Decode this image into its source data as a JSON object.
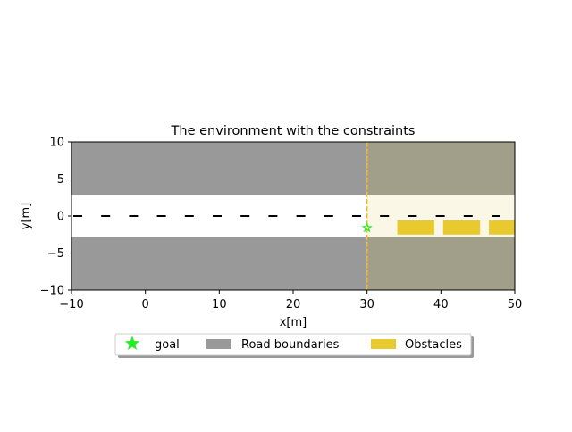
{
  "chart_data": {
    "type": "environment-map",
    "title": "The environment with the constraints",
    "xlabel": "x[m]",
    "ylabel": "y[m]",
    "xlim": [
      -10,
      50
    ],
    "ylim": [
      -10,
      10
    ],
    "xticks": [
      -10,
      0,
      10,
      20,
      30,
      40,
      50
    ],
    "yticks": [
      -10,
      -5,
      0,
      5,
      10
    ],
    "grid": false,
    "road_boundaries": [
      {
        "x": [
          -10,
          50
        ],
        "y": [
          2.8,
          10
        ]
      },
      {
        "x": [
          -10,
          50
        ],
        "y": [
          -10,
          -2.8
        ]
      }
    ],
    "constraint_region": {
      "x": [
        30,
        50
      ],
      "y": [
        -10,
        10
      ]
    },
    "constraint_line_x": 30,
    "lane_centerline_y": 0,
    "goal": {
      "x": 30,
      "y": -1.6
    },
    "obstacles": [
      {
        "x": [
          34.1,
          39.1
        ],
        "y": [
          -2.5,
          -0.6
        ]
      },
      {
        "x": [
          40.3,
          45.3
        ],
        "y": [
          -2.5,
          -0.6
        ]
      },
      {
        "x": [
          46.5,
          50
        ],
        "y": [
          -2.5,
          -0.6
        ]
      }
    ],
    "legend": {
      "placement": "bottom-center",
      "entries": [
        "goal",
        "Road boundaries",
        "Obstacles"
      ]
    },
    "colors": {
      "road_boundary": "#999999",
      "constraint_tint": "#fbf7e6",
      "constraint_tint_over_boundary": "#a19e89",
      "obstacle": "#e8c92e",
      "goal": "#22ee22",
      "constraint_line": "#f0c020",
      "centerline": "#000000"
    }
  }
}
